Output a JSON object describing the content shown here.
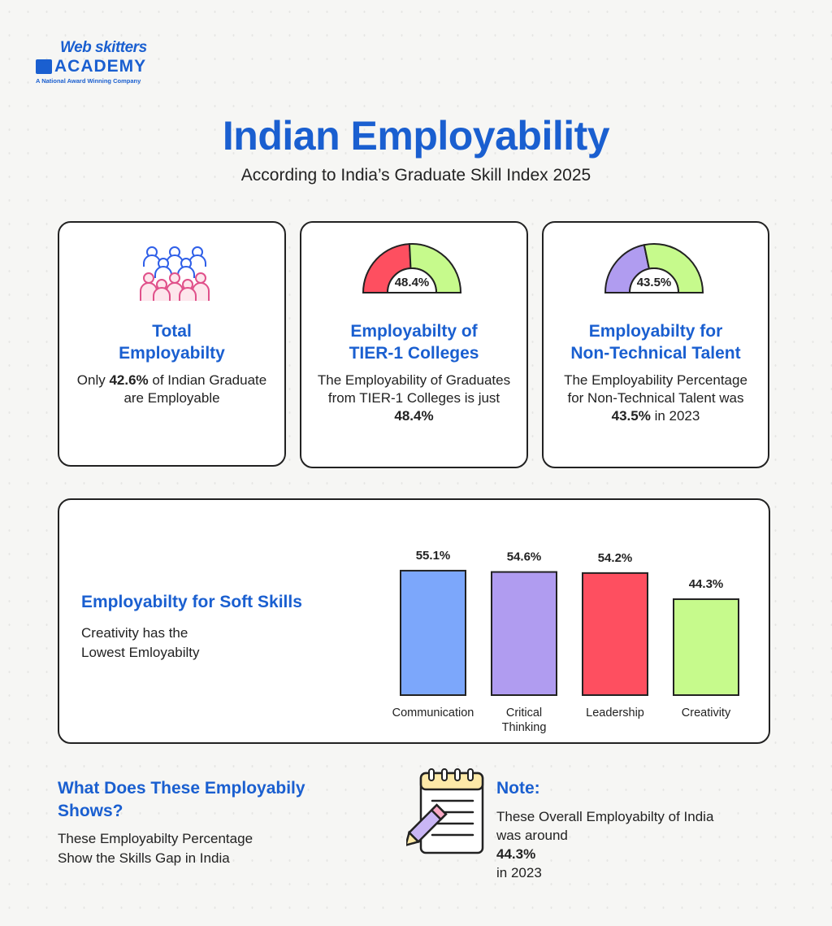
{
  "logo": {
    "line1": "Web skitters",
    "line2": "ACADEMY",
    "tagline": "A National Award Winning Company"
  },
  "title": "Indian Employability",
  "subtitle": "According to India’s Graduate Skill Index 2025",
  "colors": {
    "accent": "#1a5fd0",
    "red": "#fe4f60",
    "green": "#c6fa8c",
    "purple": "#b09cf0",
    "blue": "#7ca7fb"
  },
  "cards": {
    "total": {
      "icon": "people-group-icon",
      "heading_line1": "Total",
      "heading_line2": "Employabilty",
      "text_prefix": "Only ",
      "text_bold": "42.6%",
      "text_suffix": " of Indian Graduate are Employable"
    },
    "tier1": {
      "gauge_value": 48.4,
      "gauge_label": "48.4%",
      "heading_line1": "Employabilty of",
      "heading_line2": "TIER-1 Colleges",
      "text_prefix": "The Employability of Graduates from TIER-1 Colleges is just ",
      "text_bold": "48.4%"
    },
    "nontech": {
      "gauge_value": 43.5,
      "gauge_label": "43.5%",
      "heading_line1": "Employabilty for",
      "heading_line2": "Non-Technical Talent",
      "text_prefix": "The Employability Percentage for Non-Technical Talent was ",
      "text_bold": "43.5%",
      "text_suffix": " in 2023"
    }
  },
  "soft_skills": {
    "heading": "Employabilty for Soft Skills",
    "text_line1": "Creativity has the",
    "text_line2": "Lowest Emloyabilty"
  },
  "chart_data": {
    "type": "bar",
    "categories": [
      "Communication",
      "Critical Thinking",
      "Leadership",
      "Creativity"
    ],
    "category_lines": [
      [
        "Communication"
      ],
      [
        "Critical",
        "Thinking"
      ],
      [
        "Leadership"
      ],
      [
        "Creativity"
      ]
    ],
    "values": [
      55.1,
      54.6,
      54.2,
      44.3
    ],
    "data_labels": [
      "55.1%",
      "54.6%",
      "54.2%",
      "44.3%"
    ],
    "bar_colors": [
      "#7ca7fb",
      "#b09cf0",
      "#fe4f60",
      "#c6fa8c"
    ],
    "title": "",
    "xlabel": "",
    "ylabel": "",
    "grid": false
  },
  "shows": {
    "heading_line1": "What Does These Employabily",
    "heading_line2": "Shows?",
    "text_line1": "These Employabilty Percentage",
    "text_line2": "Show the Skills Gap in India"
  },
  "note": {
    "icon": "notepad-pencil-icon",
    "heading": "Note:",
    "text_line1": "These Overall Employabilty of India",
    "text_prefix": "was around ",
    "text_bold": "44.3%",
    "text_suffix": " in 2023"
  }
}
